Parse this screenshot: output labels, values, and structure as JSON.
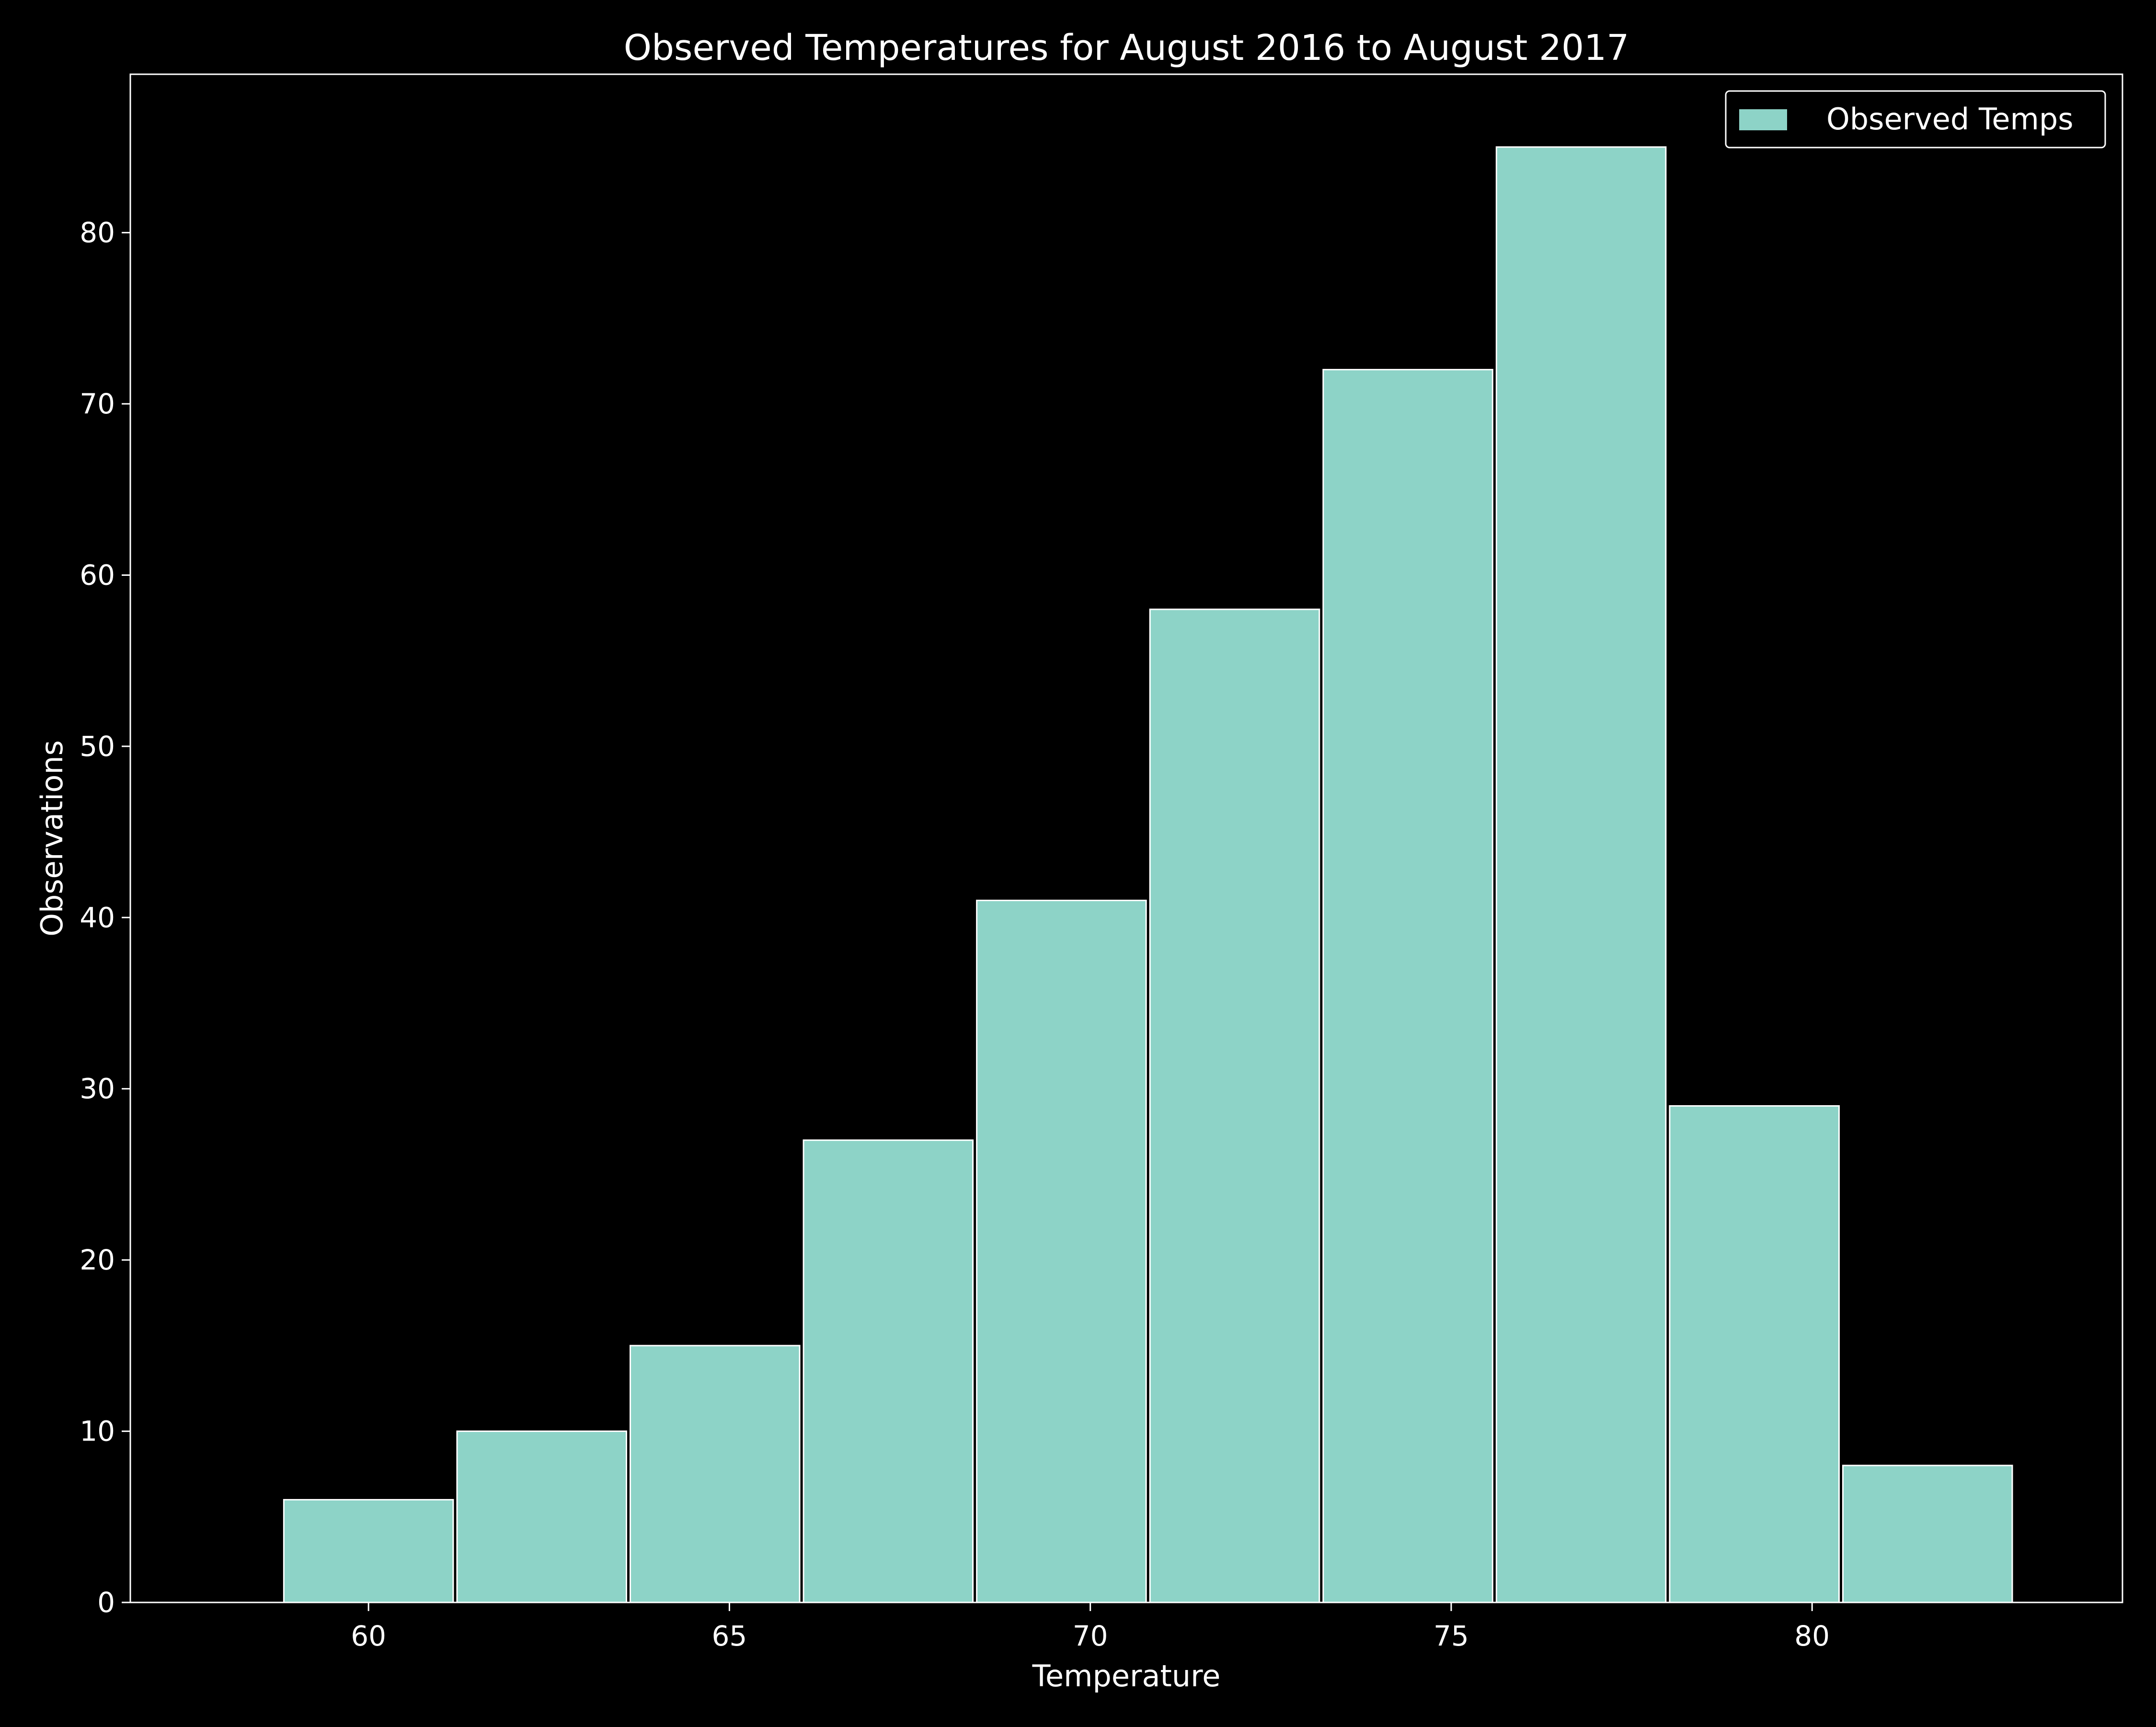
{
  "chart_data": {
    "type": "bar",
    "title": "Observed Temperatures for August 2016 to August 2017",
    "xlabel": "Temperature",
    "ylabel": "Observations",
    "bin_edges": [
      58.8,
      61.2,
      63.6,
      66.0,
      68.4,
      70.8,
      73.2,
      75.6,
      78.0,
      80.4,
      82.8
    ],
    "series": [
      {
        "name": "Observed Temps",
        "values": [
          6,
          10,
          15,
          27,
          41,
          58,
          72,
          85,
          29,
          8
        ]
      }
    ],
    "xlim": [
      56.7,
      84.3
    ],
    "ylim": [
      0,
      89.25
    ],
    "x_ticks": [
      60,
      65,
      70,
      75,
      80
    ],
    "y_ticks": [
      0,
      10,
      20,
      30,
      40,
      50,
      60,
      70,
      80
    ],
    "grid": false,
    "legend": "top-right"
  },
  "colors": {
    "background": "#000000",
    "bar_fill": "#8dd3c7",
    "axes_and_text": "#ffffff"
  }
}
